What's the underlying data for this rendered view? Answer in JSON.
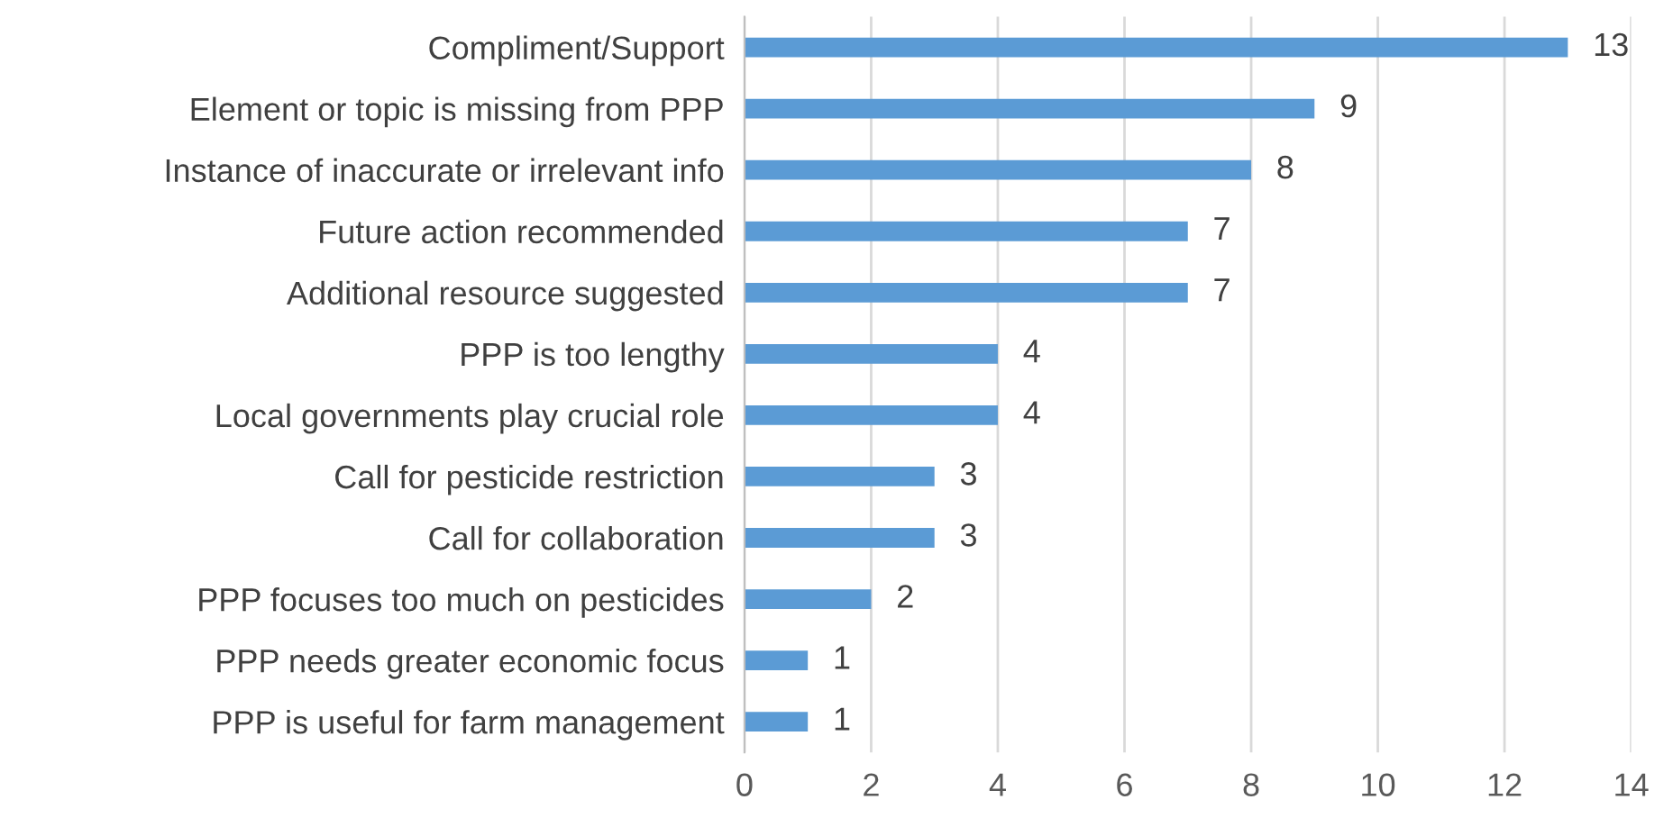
{
  "chart_data": {
    "type": "bar",
    "orientation": "horizontal",
    "categories": [
      "Compliment/Support",
      "Element or topic is missing from PPP",
      "Instance of inaccurate or irrelevant info",
      "Future action recommended",
      "Additional resource suggested",
      "PPP is too lengthy",
      "Local governments play crucial role",
      "Call for pesticide restriction",
      "Call for collaboration",
      "PPP focuses too much on pesticides",
      "PPP needs greater economic focus",
      "PPP is useful for farm management"
    ],
    "values": [
      13,
      9,
      8,
      7,
      7,
      4,
      4,
      3,
      3,
      2,
      1,
      1
    ],
    "color": "#5b9bd5",
    "xlim": [
      0,
      14
    ],
    "xticks": [
      0,
      2,
      4,
      6,
      8,
      10,
      12,
      14
    ],
    "grid": "x",
    "data_labels": true
  }
}
